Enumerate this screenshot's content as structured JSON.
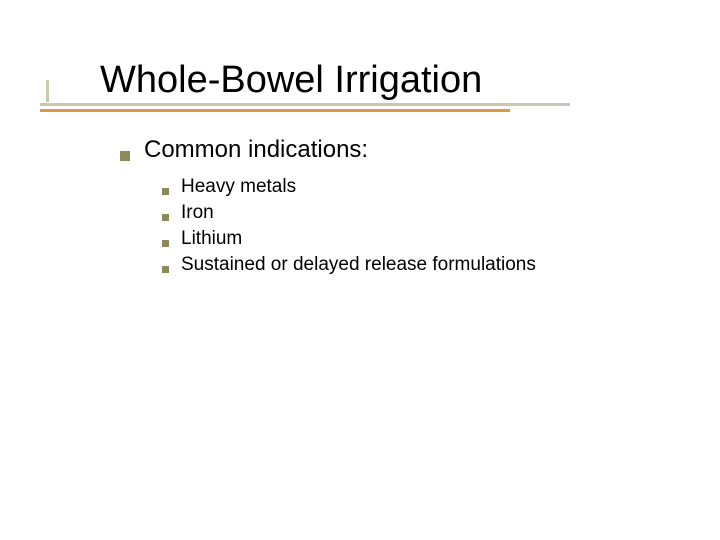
{
  "title": "Whole-Bowel Irrigation",
  "level1": {
    "text": "Common indications:"
  },
  "level2": [
    {
      "text": "Heavy metals"
    },
    {
      "text": "Iron"
    },
    {
      "text": "Lithium"
    },
    {
      "text": "Sustained or delayed release formulations"
    }
  ],
  "colors": {
    "bullet": "#8a8a5a",
    "underline_grey": "#9a9a6a",
    "underline_orange": "#d08a2a",
    "text": "#000000",
    "background": "#ffffff"
  },
  "typography": {
    "title_fontsize": 38,
    "l1_fontsize": 24,
    "l2_fontsize": 19,
    "font_family": "Verdana"
  }
}
